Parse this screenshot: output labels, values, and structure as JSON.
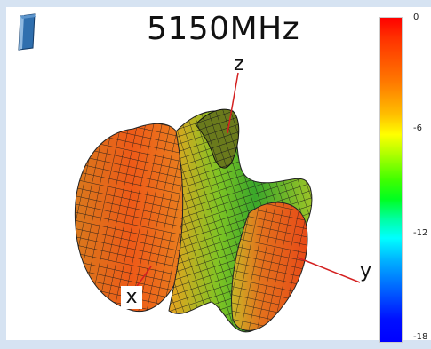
{
  "title": "5150MHz",
  "axes": {
    "x": "x",
    "y": "y",
    "z": "z"
  },
  "colorbar": {
    "ticks": [
      "0",
      "-6",
      "-12",
      "-18"
    ],
    "colors": [
      "#ff0000",
      "#ffff00",
      "#00ff00",
      "#00ffff",
      "#0000ff"
    ]
  },
  "icons": {
    "logo": "antenna-logo-icon"
  },
  "colors": {
    "frame": "#d6e3f2",
    "pattern_hot": "#e85a1a",
    "pattern_mid": "#3ea82a",
    "axis_line": "#d42020"
  }
}
